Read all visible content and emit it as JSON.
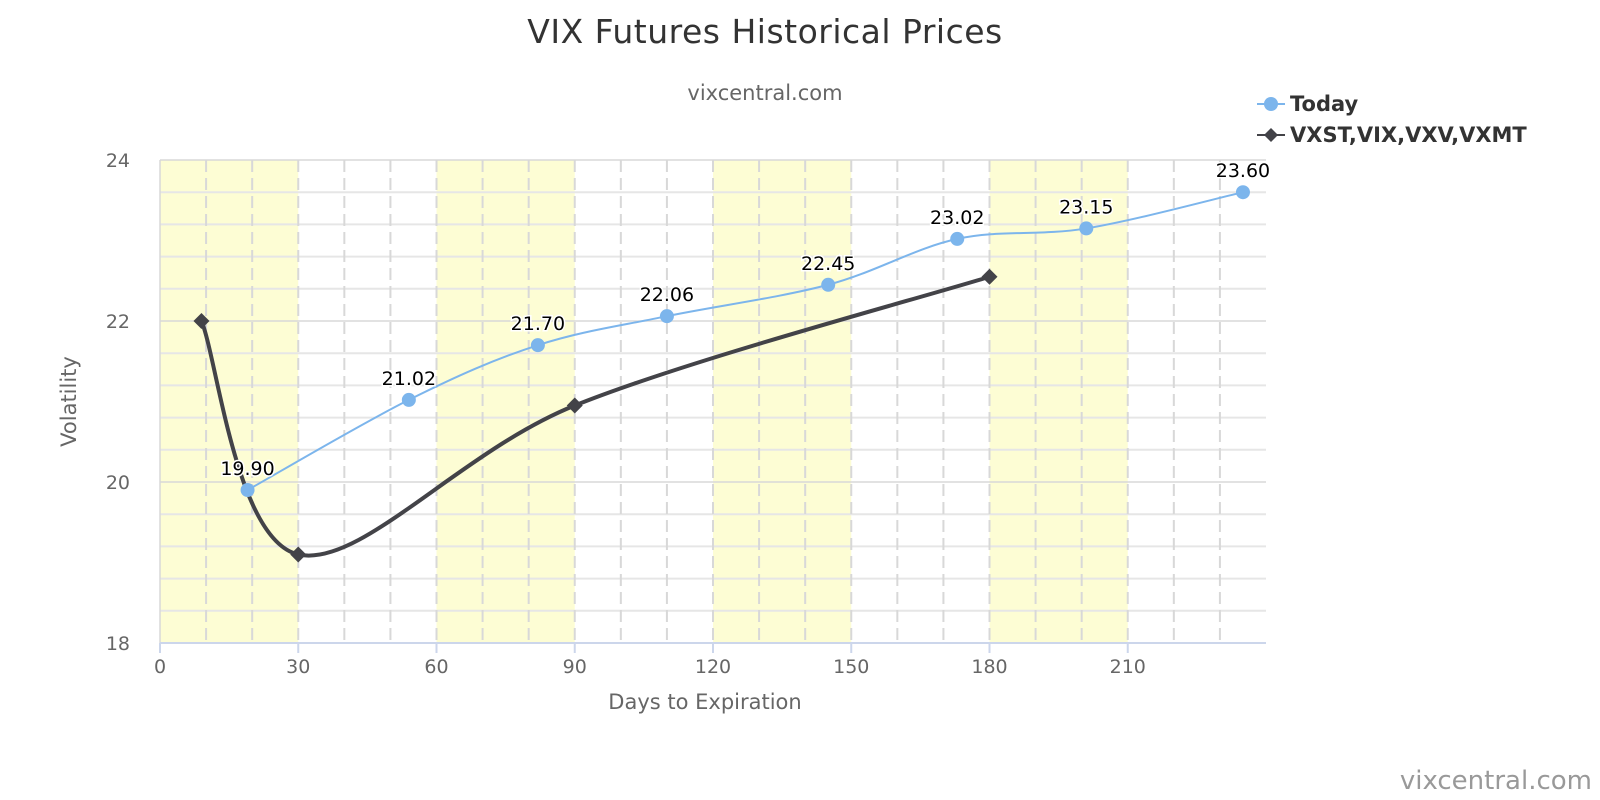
{
  "chart_data": {
    "type": "line",
    "title": "VIX Futures Historical Prices",
    "subtitle": "vixcentral.com",
    "xlabel": "Days to Expiration",
    "ylabel": "Volatility",
    "xlim": [
      0,
      240
    ],
    "ylim": [
      18,
      24
    ],
    "x_ticks": [
      0,
      30,
      60,
      90,
      120,
      150,
      180,
      210
    ],
    "y_ticks": [
      18,
      20,
      22,
      24
    ],
    "grid": true,
    "legend_position": "top-right",
    "shaded_bands": [
      [
        0,
        30
      ],
      [
        60,
        90
      ],
      [
        120,
        150
      ],
      [
        180,
        210
      ]
    ],
    "colors": {
      "band": "#fdfdd4",
      "grid": "#dddddd",
      "today": "#7cb5ec",
      "index": "#434348"
    },
    "series": [
      {
        "name": "Today",
        "marker": "circle",
        "smooth": true,
        "data_labels": true,
        "x": [
          19,
          54,
          82,
          110,
          145,
          173,
          201,
          235
        ],
        "y": [
          19.9,
          21.02,
          21.7,
          22.06,
          22.45,
          23.02,
          23.15,
          23.6
        ],
        "labels": [
          "19.90",
          "21.02",
          "21.70",
          "22.06",
          "22.45",
          "23.02",
          "23.15",
          "23.60"
        ]
      },
      {
        "name": "VXST,VIX,VXV,VXMT",
        "marker": "diamond",
        "smooth": true,
        "data_labels": false,
        "x": [
          9,
          30,
          90,
          180
        ],
        "y": [
          22.0,
          19.1,
          20.95,
          22.55
        ]
      }
    ]
  },
  "credit": "vixcentral.com"
}
